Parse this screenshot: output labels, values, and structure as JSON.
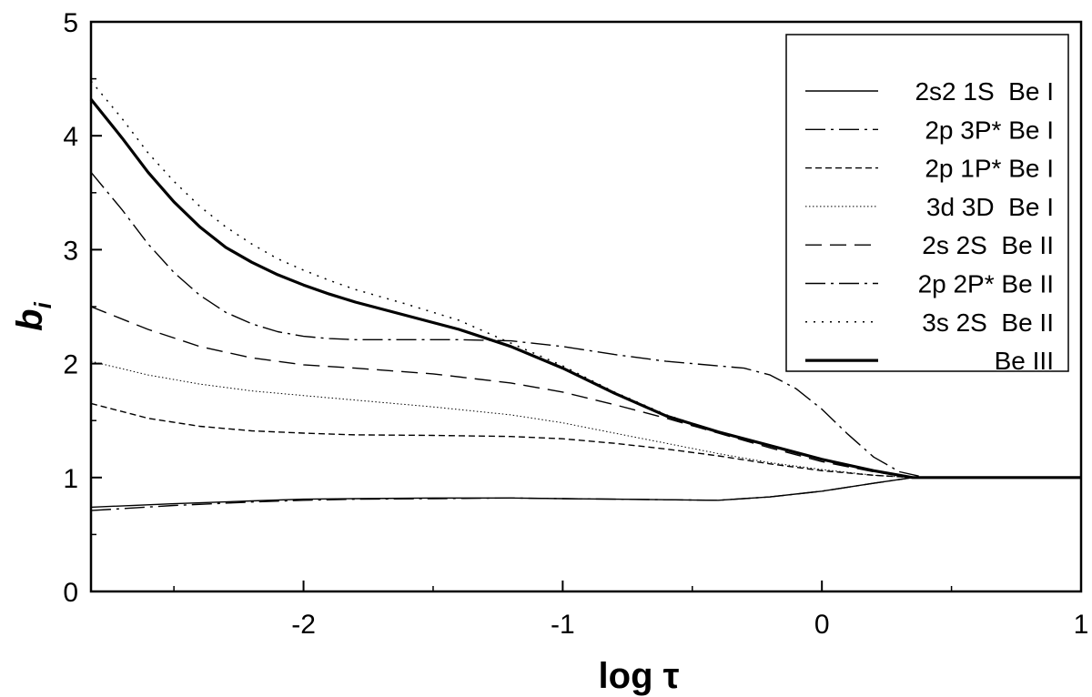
{
  "chart_data": {
    "type": "line",
    "xlabel": "log τ",
    "ylabel_main": "b",
    "ylabel_sub": "i",
    "xlim": [
      -2.82,
      1.0
    ],
    "ylim": [
      0,
      5
    ],
    "grid": false,
    "legend_position": "top-right",
    "x_ticks": [
      {
        "value": -2,
        "label": "-2"
      },
      {
        "value": -1,
        "label": "-1"
      },
      {
        "value": 0,
        "label": "0"
      },
      {
        "value": 1,
        "label": "1"
      }
    ],
    "y_ticks": [
      {
        "value": 0,
        "label": "0"
      },
      {
        "value": 1,
        "label": "1"
      },
      {
        "value": 2,
        "label": "2"
      },
      {
        "value": 3,
        "label": "3"
      },
      {
        "value": 4,
        "label": "4"
      },
      {
        "value": 5,
        "label": "5"
      }
    ],
    "series": [
      {
        "name": "2s2 1S  Be I",
        "dash": "solid",
        "width": 1.4,
        "x": [
          -2.82,
          -2.5,
          -2.2,
          -2.0,
          -1.8,
          -1.5,
          -1.2,
          -1.0,
          -0.8,
          -0.6,
          -0.4,
          -0.2,
          0.0,
          0.2,
          0.35,
          0.45,
          0.6,
          0.8,
          1.0
        ],
        "y": [
          0.74,
          0.77,
          0.795,
          0.81,
          0.815,
          0.82,
          0.82,
          0.815,
          0.81,
          0.805,
          0.8,
          0.83,
          0.88,
          0.95,
          1.0,
          1.0,
          1.0,
          1.0,
          1.0
        ]
      },
      {
        "name": "2p 3P* Be I",
        "dash": "dashdot",
        "width": 1.4,
        "x": [
          -2.82,
          -2.5,
          -2.2,
          -2.0,
          -1.8,
          -1.5,
          -1.2,
          -1.0,
          -0.8,
          -0.6,
          -0.4,
          -0.2,
          0.0,
          0.2,
          0.35,
          0.45,
          0.6,
          0.8,
          1.0
        ],
        "y": [
          0.71,
          0.755,
          0.785,
          0.8,
          0.81,
          0.815,
          0.82,
          0.815,
          0.81,
          0.805,
          0.8,
          0.83,
          0.88,
          0.95,
          1.0,
          1.0,
          1.0,
          1.0,
          1.0
        ]
      },
      {
        "name": "2p 1P* Be I",
        "dash": "shortdash",
        "width": 1.4,
        "x": [
          -2.82,
          -2.6,
          -2.4,
          -2.2,
          -2.0,
          -1.8,
          -1.5,
          -1.2,
          -1.0,
          -0.8,
          -0.6,
          -0.4,
          -0.2,
          0.0,
          0.2,
          0.35,
          0.45,
          0.6,
          0.8,
          1.0
        ],
        "y": [
          1.65,
          1.52,
          1.45,
          1.41,
          1.39,
          1.375,
          1.37,
          1.36,
          1.34,
          1.3,
          1.25,
          1.19,
          1.12,
          1.06,
          1.02,
          1.0,
          1.0,
          1.0,
          1.0,
          1.0
        ]
      },
      {
        "name": "3d 3D  Be I",
        "dash": "finedot",
        "width": 1.0,
        "x": [
          -2.82,
          -2.6,
          -2.4,
          -2.2,
          -2.0,
          -1.8,
          -1.5,
          -1.2,
          -1.0,
          -0.8,
          -0.6,
          -0.4,
          -0.2,
          0.0,
          0.2,
          0.35,
          0.45,
          0.6,
          0.8,
          1.0
        ],
        "y": [
          2.02,
          1.9,
          1.82,
          1.76,
          1.72,
          1.68,
          1.62,
          1.55,
          1.48,
          1.39,
          1.3,
          1.21,
          1.13,
          1.07,
          1.02,
          1.0,
          1.0,
          1.0,
          1.0,
          1.0
        ]
      },
      {
        "name": "2s 2S  Be II",
        "dash": "longdash",
        "width": 1.4,
        "x": [
          -2.82,
          -2.6,
          -2.4,
          -2.2,
          -2.0,
          -1.8,
          -1.5,
          -1.2,
          -1.0,
          -0.8,
          -0.6,
          -0.4,
          -0.2,
          0.0,
          0.2,
          0.35,
          0.45,
          0.6,
          0.8,
          1.0
        ],
        "y": [
          2.5,
          2.3,
          2.15,
          2.05,
          1.99,
          1.96,
          1.91,
          1.83,
          1.75,
          1.64,
          1.52,
          1.39,
          1.26,
          1.14,
          1.05,
          1.0,
          1.0,
          1.0,
          1.0,
          1.0
        ]
      },
      {
        "name": "2p 2P* Be II",
        "dash": "dashdot",
        "width": 1.4,
        "x": [
          -2.82,
          -2.7,
          -2.6,
          -2.5,
          -2.4,
          -2.3,
          -2.2,
          -2.1,
          -2.0,
          -1.9,
          -1.8,
          -1.6,
          -1.4,
          -1.2,
          -1.0,
          -0.8,
          -0.6,
          -0.4,
          -0.3,
          -0.2,
          -0.1,
          0.0,
          0.1,
          0.2,
          0.3,
          0.4,
          0.5,
          0.7,
          1.0
        ],
        "y": [
          3.68,
          3.35,
          3.05,
          2.8,
          2.6,
          2.45,
          2.35,
          2.28,
          2.24,
          2.22,
          2.21,
          2.21,
          2.21,
          2.2,
          2.15,
          2.08,
          2.02,
          1.98,
          1.96,
          1.9,
          1.78,
          1.6,
          1.38,
          1.18,
          1.05,
          1.0,
          1.0,
          1.0,
          1.0
        ]
      },
      {
        "name": "3s 2S  Be II",
        "dash": "sparsedot",
        "width": 1.5,
        "x": [
          -2.82,
          -2.7,
          -2.6,
          -2.5,
          -2.4,
          -2.3,
          -2.2,
          -2.1,
          -2.0,
          -1.9,
          -1.8,
          -1.6,
          -1.4,
          -1.2,
          -1.0,
          -0.8,
          -0.6,
          -0.4,
          -0.2,
          0.0,
          0.2,
          0.35,
          0.45,
          0.6,
          0.8,
          1.0
        ],
        "y": [
          4.48,
          4.15,
          3.85,
          3.6,
          3.38,
          3.2,
          3.05,
          2.92,
          2.82,
          2.73,
          2.65,
          2.52,
          2.38,
          2.18,
          1.98,
          1.75,
          1.55,
          1.4,
          1.28,
          1.16,
          1.06,
          1.0,
          1.0,
          1.0,
          1.0,
          1.0
        ]
      },
      {
        "name": "Be III",
        "dash": "solid",
        "width": 3.2,
        "x": [
          -2.82,
          -2.7,
          -2.6,
          -2.5,
          -2.4,
          -2.3,
          -2.2,
          -2.1,
          -2.0,
          -1.9,
          -1.8,
          -1.6,
          -1.4,
          -1.2,
          -1.0,
          -0.8,
          -0.6,
          -0.4,
          -0.2,
          0.0,
          0.2,
          0.35,
          0.45,
          0.6,
          0.8,
          1.0
        ],
        "y": [
          4.32,
          3.98,
          3.68,
          3.42,
          3.2,
          3.02,
          2.89,
          2.78,
          2.69,
          2.61,
          2.54,
          2.42,
          2.3,
          2.15,
          1.96,
          1.74,
          1.54,
          1.4,
          1.28,
          1.16,
          1.06,
          1.0,
          1.0,
          1.0,
          1.0,
          1.0
        ]
      }
    ]
  }
}
